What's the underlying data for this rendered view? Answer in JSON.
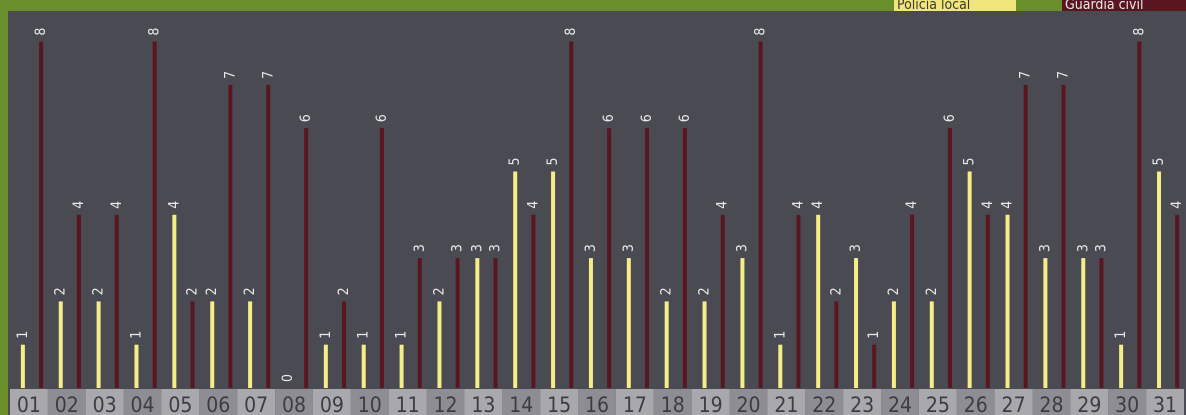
{
  "chart_data": {
    "type": "bar",
    "categories": [
      "01",
      "02",
      "03",
      "04",
      "05",
      "06",
      "07",
      "08",
      "09",
      "10",
      "11",
      "12",
      "13",
      "14",
      "15",
      "16",
      "17",
      "18",
      "19",
      "20",
      "21",
      "22",
      "23",
      "24",
      "25",
      "26",
      "27",
      "28",
      "29",
      "30",
      "31"
    ],
    "series": [
      {
        "name": "Policía local",
        "color": "#f5ee88",
        "values": [
          1,
          2,
          2,
          1,
          4,
          2,
          2,
          0,
          1,
          1,
          1,
          2,
          3,
          5,
          5,
          3,
          3,
          2,
          2,
          3,
          1,
          4,
          3,
          2,
          2,
          5,
          4,
          3,
          3,
          1,
          5
        ]
      },
      {
        "name": "Guardia civil",
        "color": "#5a1620",
        "values": [
          8,
          4,
          4,
          8,
          2,
          7,
          7,
          6,
          2,
          6,
          3,
          3,
          3,
          4,
          8,
          6,
          6,
          6,
          4,
          8,
          4,
          2,
          1,
          4,
          6,
          4,
          7,
          7,
          3,
          8,
          4
        ]
      }
    ],
    "ylim": [
      0,
      8
    ]
  },
  "legend": {
    "local": "Policía local",
    "civil": "Guardia civil"
  }
}
